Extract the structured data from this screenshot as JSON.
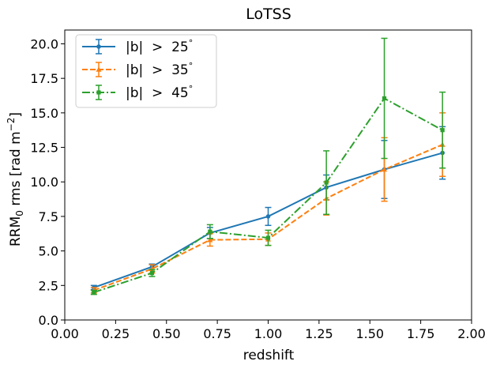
{
  "chart_data": {
    "type": "line",
    "title": "LoTSS",
    "xlabel": "redshift",
    "ylabel": "RRM",
    "ylabel_subscript": "0",
    "ylabel_suffix": " rms [rad m",
    "ylabel_superscript": "−2",
    "ylabel_close": "]",
    "xlim": [
      0.0,
      2.0
    ],
    "ylim": [
      0.0,
      21.0
    ],
    "xticks": [
      0.0,
      0.25,
      0.5,
      0.75,
      1.0,
      1.25,
      1.5,
      1.75,
      2.0
    ],
    "xtick_labels": [
      "0.00",
      "0.25",
      "0.50",
      "0.75",
      "1.00",
      "1.25",
      "1.50",
      "1.75",
      "2.00"
    ],
    "yticks": [
      0.0,
      2.5,
      5.0,
      7.5,
      10.0,
      12.5,
      15.0,
      17.5,
      20.0
    ],
    "ytick_labels": [
      "0.0",
      "2.5",
      "5.0",
      "7.5",
      "10.0",
      "12.5",
      "15.0",
      "17.5",
      "20.0"
    ],
    "grid": false,
    "legend_position": "top-left",
    "x": [
      0.143,
      0.429,
      0.714,
      1.0,
      1.286,
      1.571,
      1.857
    ],
    "series": [
      {
        "name": "|b|  >  25",
        "color": "#1f77b4",
        "linestyle": "solid",
        "marker": "circle",
        "values": [
          2.35,
          3.85,
          6.3,
          7.5,
          9.6,
          10.9,
          12.1
        ],
        "errors": [
          0.15,
          0.2,
          0.4,
          0.65,
          0.9,
          2.1,
          1.9
        ]
      },
      {
        "name": "|b|  >  35",
        "color": "#ff7f0e",
        "linestyle": "dashed",
        "marker": "triangle",
        "values": [
          2.15,
          3.7,
          5.8,
          5.85,
          8.8,
          10.9,
          12.7
        ],
        "errors": [
          0.2,
          0.3,
          0.45,
          0.45,
          1.2,
          2.3,
          2.3
        ]
      },
      {
        "name": "|b|  >  45",
        "color": "#2ca02c",
        "linestyle": "dashdot",
        "marker": "square",
        "values": [
          2.0,
          3.4,
          6.4,
          5.95,
          9.95,
          16.05,
          13.75
        ],
        "errors": [
          0.15,
          0.25,
          0.5,
          0.55,
          2.3,
          4.35,
          2.75
        ]
      }
    ],
    "legend_degree_symbol": "°"
  }
}
